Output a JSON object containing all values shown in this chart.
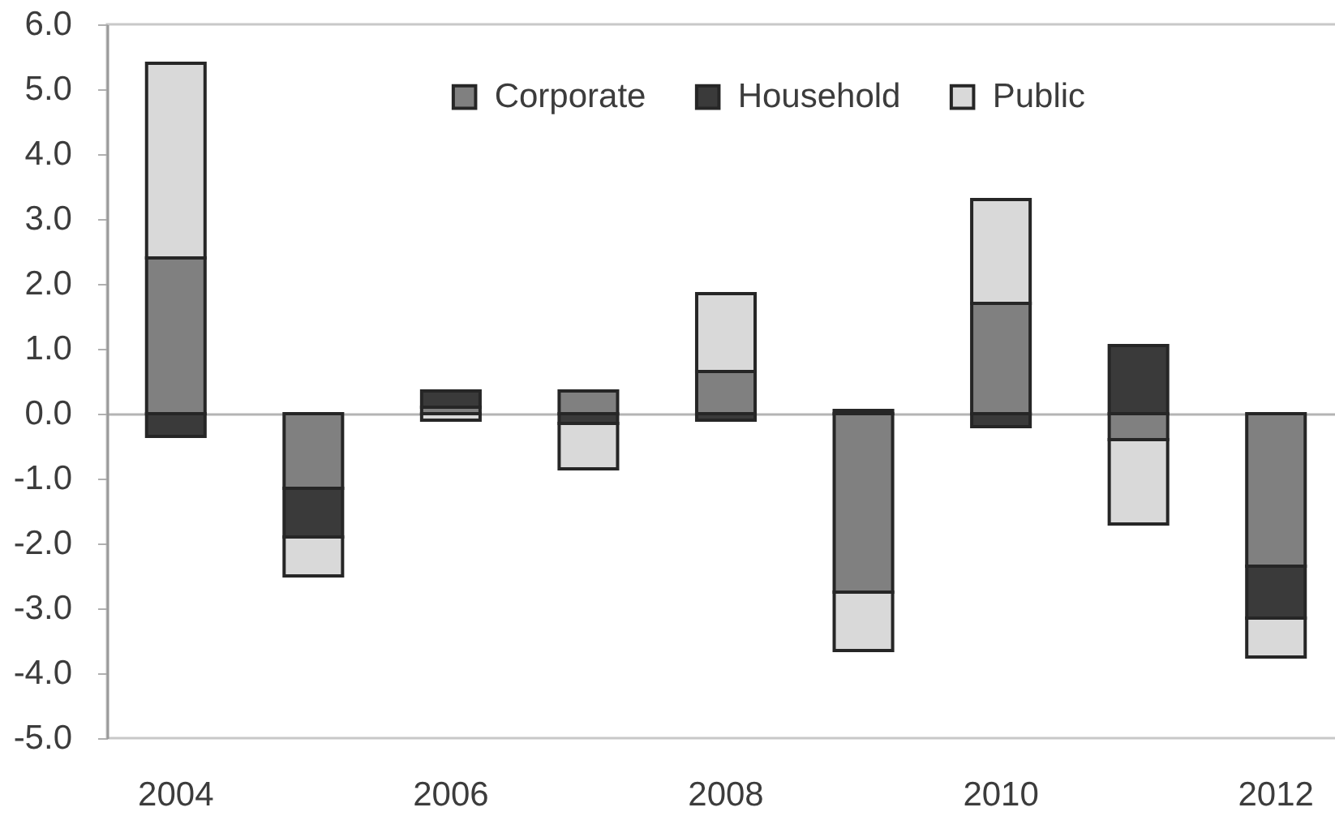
{
  "chart_data": {
    "type": "bar",
    "stacked": true,
    "categories": [
      "2004",
      null,
      "2006",
      null,
      "2008",
      null,
      "2010",
      null,
      "2012"
    ],
    "series": [
      {
        "name": "Corporate",
        "color": "#808080",
        "values": [
          2.4,
          -1.15,
          0.1,
          0.35,
          0.65,
          -2.75,
          1.7,
          -0.4,
          -2.35
        ]
      },
      {
        "name": "Household",
        "color": "#3a3a3a",
        "values": [
          -0.35,
          -0.75,
          0.25,
          -0.15,
          -0.1,
          0.05,
          -0.2,
          1.05,
          -0.8
        ]
      },
      {
        "name": "Public",
        "color": "#d9d9d9",
        "values": [
          3.0,
          -0.6,
          -0.1,
          -0.7,
          1.2,
          -0.9,
          1.6,
          -1.3,
          -0.6
        ]
      }
    ],
    "ylim": [
      -5,
      6
    ],
    "yticks": [
      {
        "value": -5,
        "label": "-5.0"
      },
      {
        "value": -4,
        "label": "-4.0"
      },
      {
        "value": -3,
        "label": "-3.0"
      },
      {
        "value": -2,
        "label": "-2.0"
      },
      {
        "value": -1,
        "label": "-1.0"
      },
      {
        "value": 0,
        "label": "0.0"
      },
      {
        "value": 1,
        "label": "1.0"
      },
      {
        "value": 2,
        "label": "2.0"
      },
      {
        "value": 3,
        "label": "3.0"
      },
      {
        "value": 4,
        "label": "4.0"
      },
      {
        "value": 5,
        "label": "5.0"
      },
      {
        "value": 6,
        "label": "6.0"
      }
    ],
    "legend": "top"
  }
}
